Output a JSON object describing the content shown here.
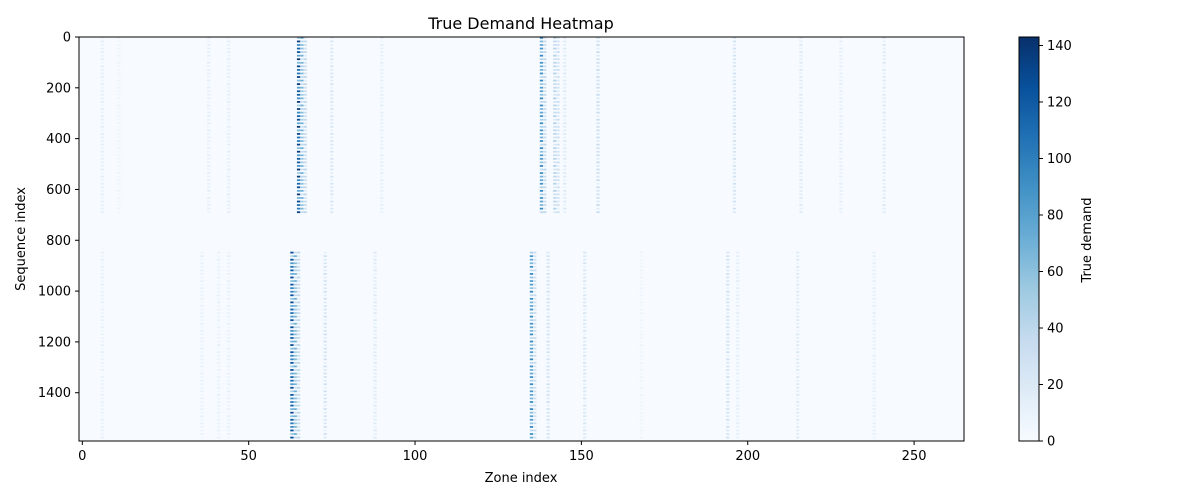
{
  "chart_data": {
    "type": "heatmap",
    "title": "True Demand Heatmap",
    "xlabel": "Zone index",
    "ylabel": "Sequence index",
    "colorbar_label": "True demand",
    "xlim": [
      -1,
      265
    ],
    "ylim": [
      1590,
      0
    ],
    "x_ticks": [
      0,
      50,
      100,
      150,
      200,
      250
    ],
    "y_ticks": [
      0,
      200,
      400,
      600,
      800,
      1000,
      1200,
      1400
    ],
    "colorbar_range": [
      0,
      143
    ],
    "colorbar_ticks": [
      0,
      20,
      40,
      60,
      80,
      100,
      120,
      140
    ],
    "colormap": "Blues",
    "color_low": "#f7fbff",
    "color_high": "#08306b",
    "blocks": [
      {
        "rows": [
          0,
          690
        ],
        "columns": [
          {
            "zone": 65,
            "intensity": 140
          },
          {
            "zone": 66,
            "intensity": 70
          },
          {
            "zone": 67,
            "intensity": 40
          },
          {
            "zone": 138,
            "intensity": 95
          },
          {
            "zone": 139,
            "intensity": 40
          },
          {
            "zone": 142,
            "intensity": 45
          },
          {
            "zone": 143,
            "intensity": 30
          },
          {
            "zone": 145,
            "intensity": 20
          },
          {
            "zone": 155,
            "intensity": 35
          },
          {
            "zone": 196,
            "intensity": 30
          },
          {
            "zone": 216,
            "intensity": 20
          },
          {
            "zone": 228,
            "intensity": 15
          },
          {
            "zone": 241,
            "intensity": 20
          },
          {
            "zone": 75,
            "intensity": 25
          },
          {
            "zone": 90,
            "intensity": 15
          },
          {
            "zone": 6,
            "intensity": 15
          },
          {
            "zone": 38,
            "intensity": 15
          },
          {
            "zone": 44,
            "intensity": 15
          },
          {
            "zone": 11,
            "intensity": 8
          }
        ]
      },
      {
        "rows": [
          845,
          1575
        ],
        "columns": [
          {
            "zone": 63,
            "intensity": 130
          },
          {
            "zone": 64,
            "intensity": 70
          },
          {
            "zone": 65,
            "intensity": 40
          },
          {
            "zone": 73,
            "intensity": 30
          },
          {
            "zone": 88,
            "intensity": 20
          },
          {
            "zone": 135,
            "intensity": 95
          },
          {
            "zone": 136,
            "intensity": 35
          },
          {
            "zone": 140,
            "intensity": 30
          },
          {
            "zone": 151,
            "intensity": 25
          },
          {
            "zone": 194,
            "intensity": 30
          },
          {
            "zone": 197,
            "intensity": 15
          },
          {
            "zone": 215,
            "intensity": 20
          },
          {
            "zone": 238,
            "intensity": 15
          },
          {
            "zone": 6,
            "intensity": 12
          },
          {
            "zone": 36,
            "intensity": 12
          },
          {
            "zone": 41,
            "intensity": 12
          },
          {
            "zone": 44,
            "intensity": 12
          },
          {
            "zone": 168,
            "intensity": 8
          }
        ]
      }
    ]
  }
}
